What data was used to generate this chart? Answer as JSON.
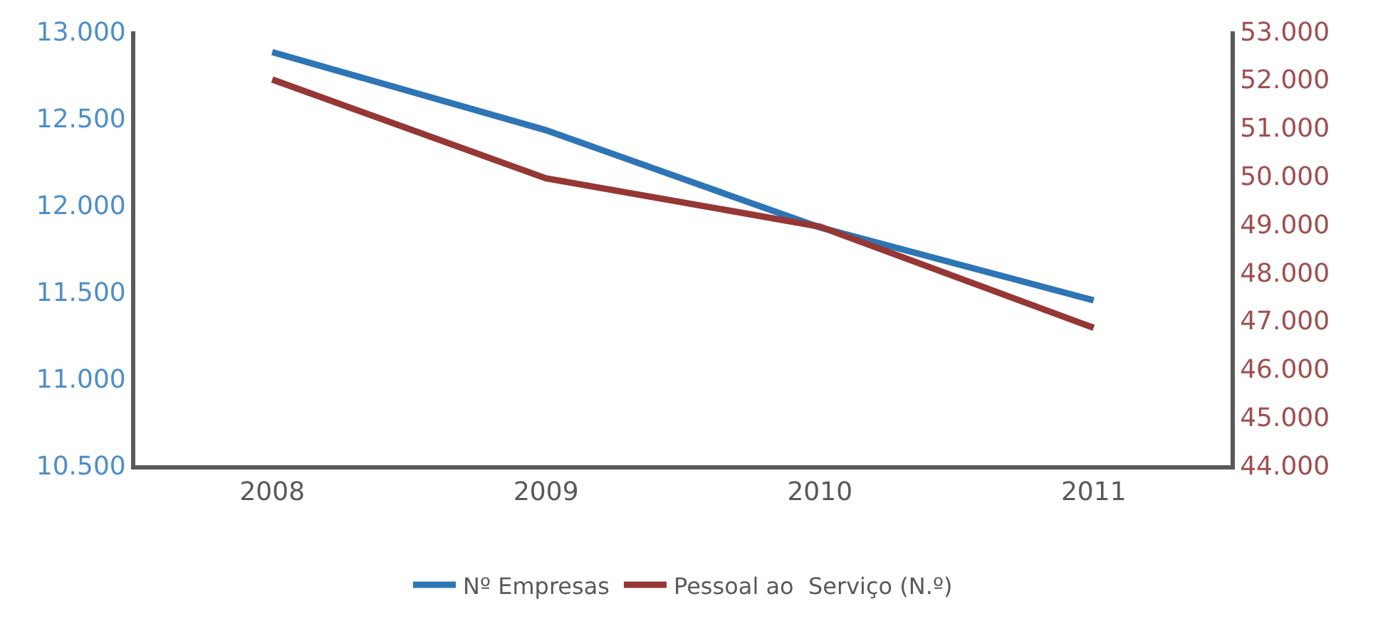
{
  "chart_data": {
    "type": "line",
    "categories": [
      "2008",
      "2009",
      "2010",
      "2011"
    ],
    "series": [
      {
        "name": "Nº Empresas",
        "color": "#2e75b6",
        "values": [
          12880,
          12430,
          11870,
          11450
        ]
      },
      {
        "name": "Pessoal ao  Serviço (N.º)",
        "color": "#953735",
        "axis": "y2",
        "values": [
          52000,
          49950,
          48950,
          46850
        ]
      }
    ],
    "ylim": [
      10500,
      13000
    ],
    "yticks": [
      {
        "value": 10500,
        "label": "10.500"
      },
      {
        "value": 11000,
        "label": "11.000"
      },
      {
        "value": 11500,
        "label": "11.500"
      },
      {
        "value": 12000,
        "label": "12.000"
      },
      {
        "value": 12500,
        "label": "12.500"
      },
      {
        "value": 13000,
        "label": "13.000"
      }
    ],
    "y2lim": [
      44000,
      53000
    ],
    "y2ticks": [
      {
        "value": 44000,
        "label": "44.000"
      },
      {
        "value": 45000,
        "label": "45.000"
      },
      {
        "value": 46000,
        "label": "46.000"
      },
      {
        "value": 47000,
        "label": "47.000"
      },
      {
        "value": 48000,
        "label": "48.000"
      },
      {
        "value": 49000,
        "label": "49.000"
      },
      {
        "value": 50000,
        "label": "50.000"
      },
      {
        "value": 51000,
        "label": "51.000"
      },
      {
        "value": 52000,
        "label": "52.000"
      },
      {
        "value": 53000,
        "label": "53.000"
      }
    ],
    "legend": "bottom",
    "marker": "none",
    "line_style": "solid"
  }
}
